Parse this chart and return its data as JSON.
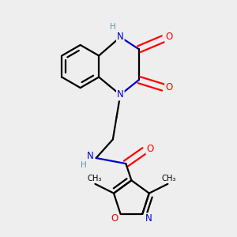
{
  "background_color": "#eeeeee",
  "atom_color_N": "#0000cc",
  "atom_color_O": "#ff0000",
  "atom_color_NH": "#5599aa",
  "atom_color_bond": "#000000",
  "bond_width": 1.6,
  "figsize": [
    3.0,
    3.0
  ],
  "dpi": 100,
  "xlim": [
    -0.2,
    1.05
  ],
  "ylim": [
    -0.15,
    1.05
  ]
}
